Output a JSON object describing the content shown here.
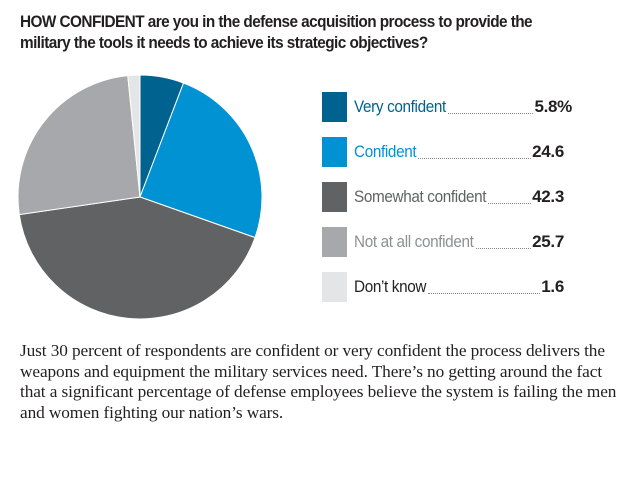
{
  "chart_data": {
    "type": "pie",
    "title": "HOW CONFIDENT are you in the defense acquisition process to provide the military the tools it needs to achieve its strategic objectives?",
    "start_angle": "12 o'clock",
    "direction": "clockwise",
    "legend_position": "right",
    "slices": [
      {
        "label": "Very confident",
        "value": 5.8,
        "value_label": "5.8%",
        "color": "#00628e",
        "label_color": "#00628e"
      },
      {
        "label": "Confident",
        "value": 24.6,
        "value_label": "24.6",
        "color": "#0092d2",
        "label_color": "#0092d2"
      },
      {
        "label": "Somewhat confident",
        "value": 42.3,
        "value_label": "42.3",
        "color": "#616264",
        "label_color": "#616264"
      },
      {
        "label": "Not at all confident",
        "value": 25.7,
        "value_label": "25.7",
        "color": "#a6a8ab",
        "label_color": "#8e9093"
      },
      {
        "label": "Don’t know",
        "value": 1.6,
        "value_label": "1.6",
        "color": "#e4e5e6",
        "label_color": "#231f20"
      }
    ]
  },
  "title": {
    "bold": "HOW CONFIDENT",
    "rest": " are you in the defense acquisition process to provide the military the tools it needs to achieve its strategic objectives?"
  },
  "body_text": "Just 30 percent of respondents are confident or very confident the process delivers the weapons and equipment the military services need. There’s no getting around the fact that a significant percentage of defense employees believe the system is failing the men and women fighting our nation’s wars."
}
